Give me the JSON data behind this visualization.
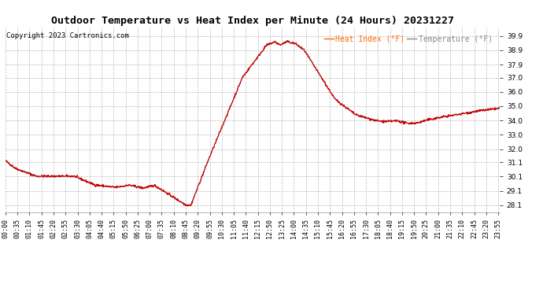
{
  "title": "Outdoor Temperature vs Heat Index per Minute (24 Hours) 20231227",
  "copyright": "Copyright 2023 Cartronics.com",
  "legend_heat": "Heat Index (°F)",
  "legend_temp": "Temperature (°F)",
  "legend_heat_color": "#ff6600",
  "legend_temp_color": "#888888",
  "line_color_red": "#cc0000",
  "line_color_black": "#555555",
  "ylim_min": 27.6,
  "ylim_max": 40.55,
  "yticks": [
    28.1,
    29.1,
    30.1,
    31.1,
    32.0,
    33.0,
    34.0,
    35.0,
    36.0,
    37.0,
    37.9,
    38.9,
    39.9
  ],
  "bg_color": "#ffffff",
  "grid_color": "#bbbbbb",
  "title_fontsize": 9.5,
  "tick_fontsize": 6.0,
  "copyright_fontsize": 6.5,
  "legend_fontsize": 7.0
}
